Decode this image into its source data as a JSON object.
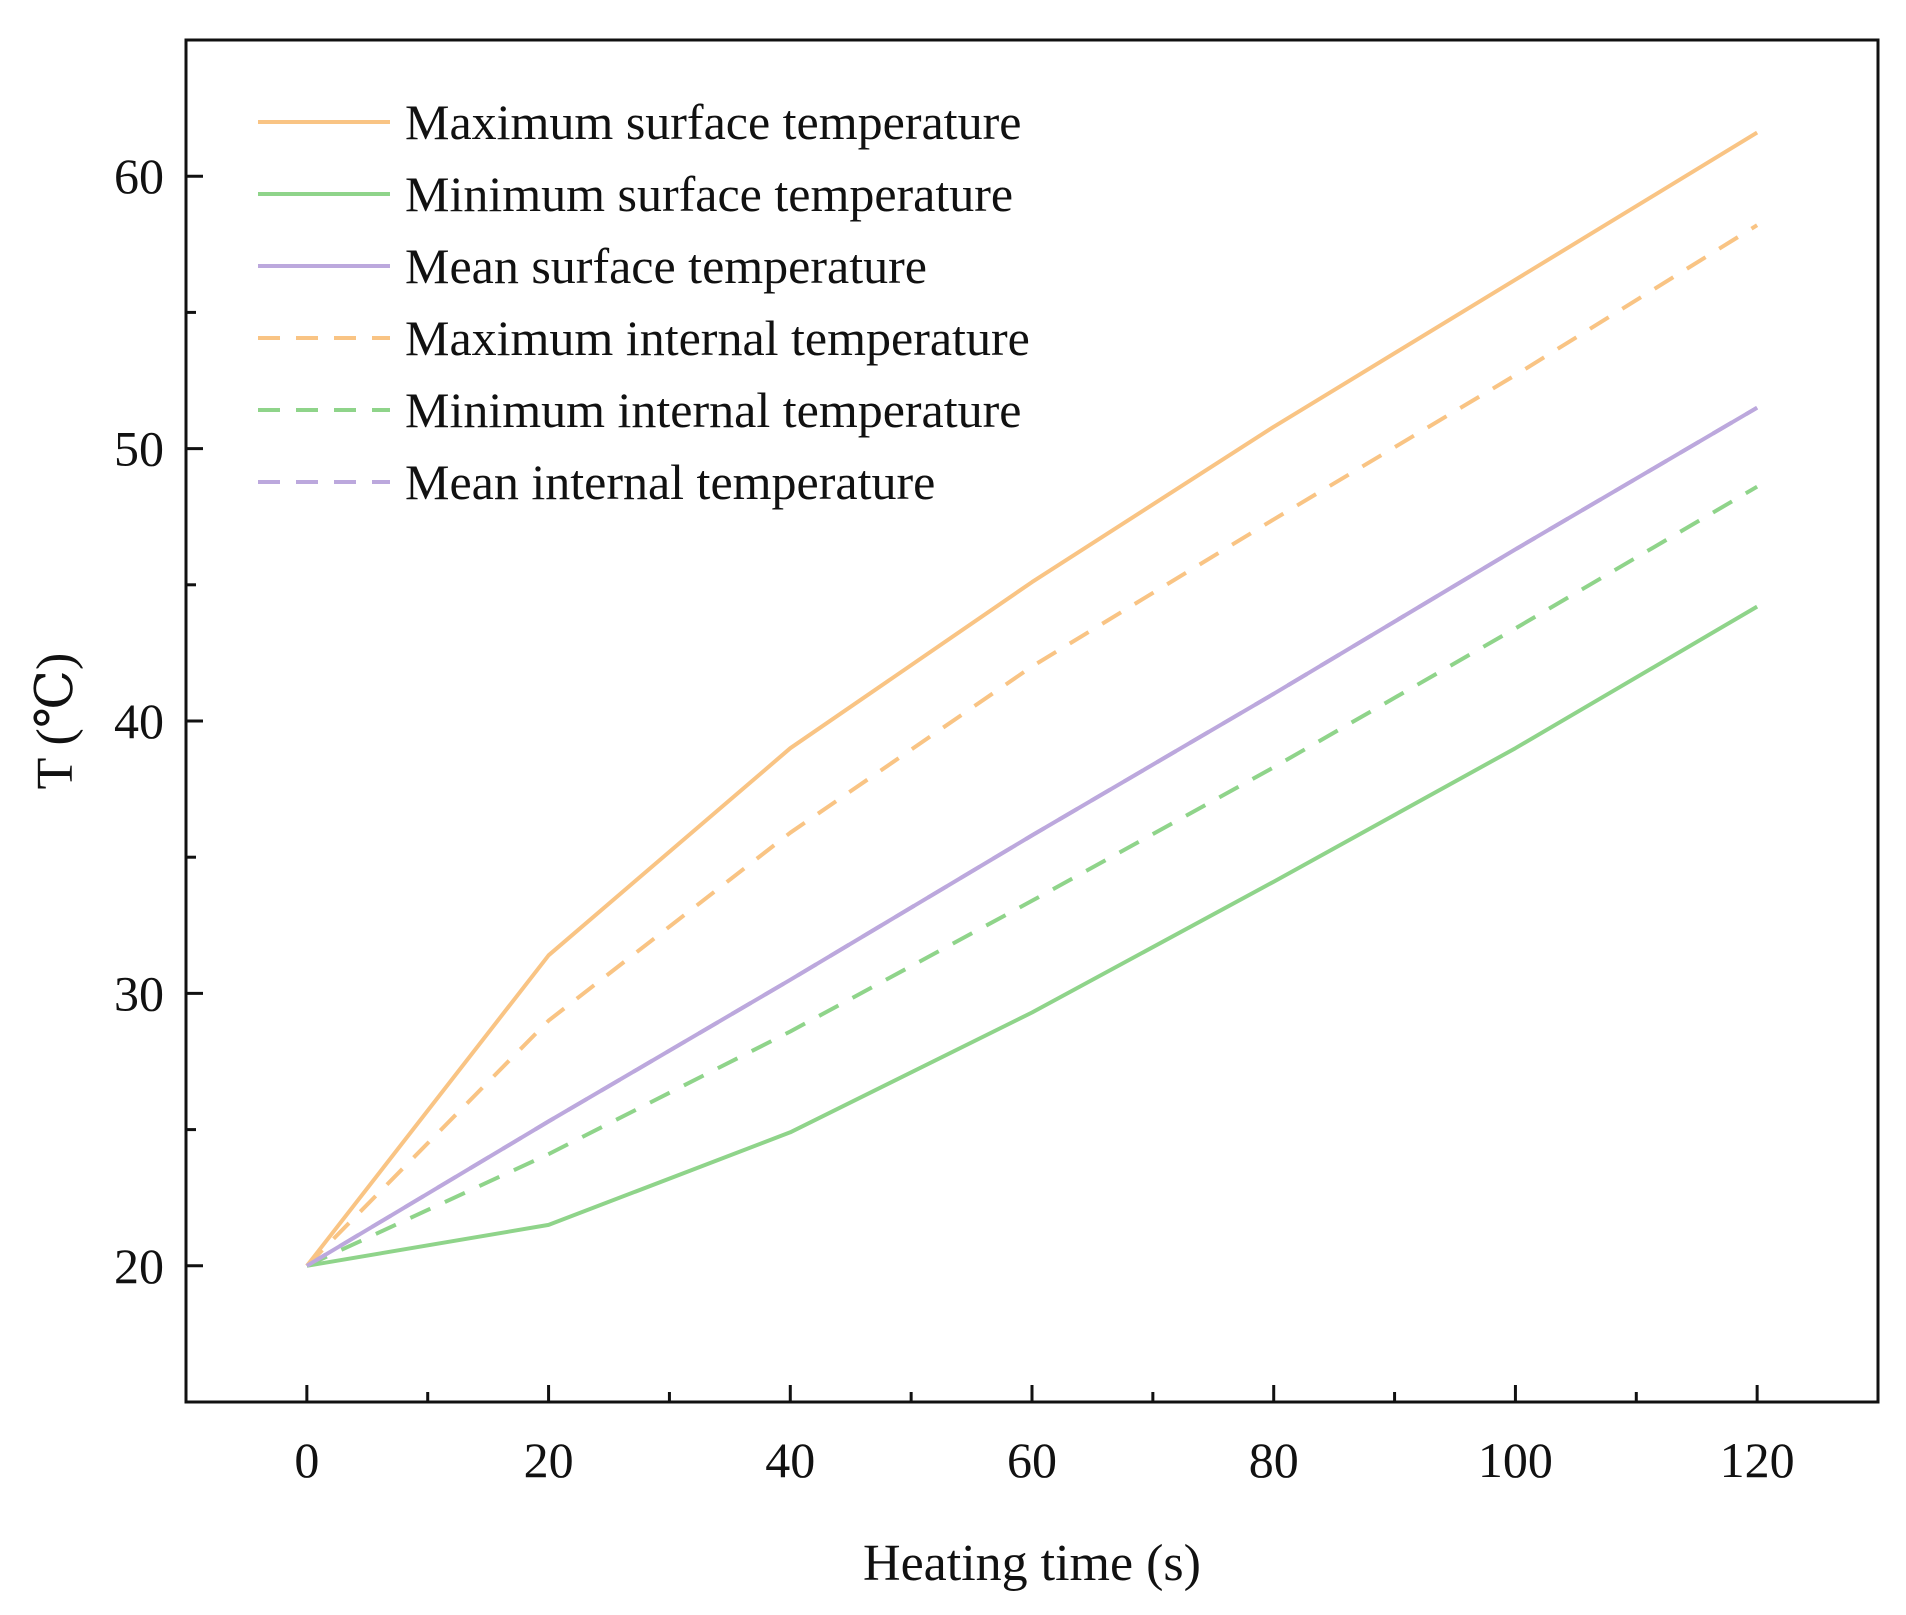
{
  "chart_data": {
    "type": "line",
    "title": "",
    "xlabel": "Heating time (s)",
    "ylabel": "T (℃)",
    "xlim": [
      -10,
      130
    ],
    "ylim": [
      15,
      65
    ],
    "x_ticks": [
      0,
      20,
      40,
      60,
      80,
      100,
      120
    ],
    "x_tick_labels": [
      "0",
      "20",
      "40",
      "60",
      "80",
      "100",
      "120"
    ],
    "x_minor_ticks": [
      10,
      30,
      50,
      70,
      90,
      110
    ],
    "y_ticks": [
      20,
      30,
      40,
      50,
      60
    ],
    "y_tick_labels": [
      "20",
      "30",
      "40",
      "50",
      "60"
    ],
    "y_minor_ticks": [
      25,
      35,
      45,
      55
    ],
    "grid": false,
    "legend_position": "top-left",
    "x": [
      0,
      20,
      40,
      60,
      80,
      100,
      120
    ],
    "series": [
      {
        "name": "Maximum surface temperature",
        "values": [
          20,
          31.4,
          39,
          45.1,
          50.8,
          56.2,
          61.6
        ],
        "color": "#F9C484",
        "dash": "solid"
      },
      {
        "name": "Minimum surface temperature",
        "values": [
          20,
          21.5,
          24.9,
          29.3,
          34.1,
          39.0,
          44.2
        ],
        "color": "#8FD48A",
        "dash": "solid"
      },
      {
        "name": "Mean surface temperature",
        "values": [
          20,
          25.3,
          30.5,
          35.8,
          41.0,
          46.3,
          51.5
        ],
        "color": "#BCA8DD",
        "dash": "solid"
      },
      {
        "name": "Maximum internal temperature",
        "values": [
          20,
          29.0,
          35.9,
          42.0,
          47.4,
          52.7,
          58.2
        ],
        "color": "#F9C484",
        "dash": "dashed"
      },
      {
        "name": "Minimum internal temperature",
        "values": [
          20,
          24.1,
          28.6,
          33.4,
          38.3,
          43.4,
          48.6
        ],
        "color": "#8FD48A",
        "dash": "dashed"
      },
      {
        "name": "Mean internal temperature",
        "values": [
          20,
          25.3,
          30.5,
          35.8,
          41.0,
          46.3,
          51.5
        ],
        "color": "#BCA8DD",
        "dash": "dashed"
      }
    ]
  }
}
